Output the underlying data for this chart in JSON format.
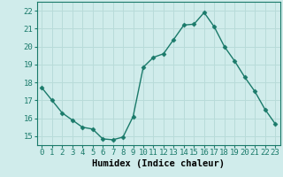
{
  "x": [
    0,
    1,
    2,
    3,
    4,
    5,
    6,
    7,
    8,
    9,
    10,
    11,
    12,
    13,
    14,
    15,
    16,
    17,
    18,
    19,
    20,
    21,
    22,
    23
  ],
  "y": [
    17.7,
    17.0,
    16.3,
    15.9,
    15.5,
    15.4,
    14.85,
    14.8,
    14.95,
    16.1,
    18.85,
    19.4,
    19.6,
    20.4,
    21.2,
    21.25,
    21.9,
    21.1,
    20.0,
    19.2,
    18.3,
    17.5,
    16.5,
    15.7
  ],
  "line_color": "#1a7a6a",
  "marker": "D",
  "marker_size": 2.5,
  "bg_color": "#d0eceb",
  "grid_color": "#b8dbd9",
  "xlabel": "Humidex (Indice chaleur)",
  "xlim": [
    -0.5,
    23.5
  ],
  "ylim": [
    14.5,
    22.5
  ],
  "yticks": [
    15,
    16,
    17,
    18,
    19,
    20,
    21,
    22
  ],
  "xticks": [
    0,
    1,
    2,
    3,
    4,
    5,
    6,
    7,
    8,
    9,
    10,
    11,
    12,
    13,
    14,
    15,
    16,
    17,
    18,
    19,
    20,
    21,
    22,
    23
  ],
  "tick_fontsize": 6.5,
  "xlabel_fontsize": 7.5
}
